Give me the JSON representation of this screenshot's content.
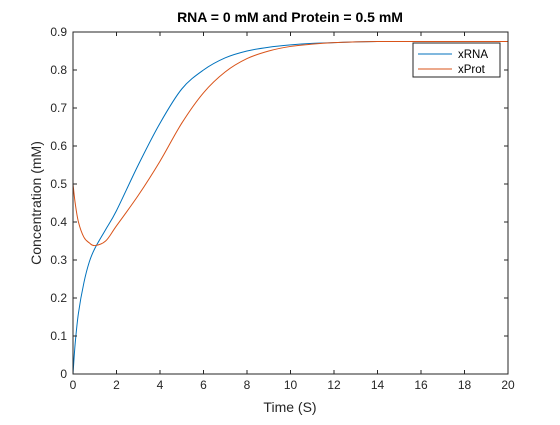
{
  "chart_data": {
    "type": "line",
    "title": "RNA = 0 mM and Protein = 0.5 mM",
    "xlabel": "Time (S)",
    "ylabel": "Concentration (mM)",
    "xlim": [
      0,
      20
    ],
    "ylim": [
      0,
      0.9
    ],
    "xticks": [
      0,
      2,
      4,
      6,
      8,
      10,
      12,
      14,
      16,
      18,
      20
    ],
    "yticks": [
      0,
      0.1,
      0.2,
      0.3,
      0.4,
      0.5,
      0.6,
      0.7,
      0.8,
      0.9
    ],
    "grid": false,
    "legend_position": "top-right",
    "x": [
      0,
      0.1,
      0.25,
      0.5,
      0.75,
      1,
      1.5,
      2,
      3,
      4,
      5,
      6,
      7,
      8,
      9,
      10,
      11,
      12,
      13,
      14,
      15,
      16,
      17,
      18,
      19,
      20
    ],
    "series": [
      {
        "name": "xRNA",
        "color": "#0072BD",
        "values": [
          0,
          0.08,
          0.16,
          0.24,
          0.295,
          0.33,
          0.38,
          0.43,
          0.55,
          0.66,
          0.75,
          0.8,
          0.832,
          0.85,
          0.86,
          0.866,
          0.87,
          0.872,
          0.874,
          0.875,
          0.875,
          0.875,
          0.875,
          0.875,
          0.875,
          0.875
        ]
      },
      {
        "name": "xProt",
        "color": "#D95319",
        "values": [
          0.5,
          0.45,
          0.4,
          0.36,
          0.345,
          0.338,
          0.35,
          0.39,
          0.47,
          0.56,
          0.66,
          0.74,
          0.795,
          0.83,
          0.85,
          0.862,
          0.868,
          0.872,
          0.874,
          0.875,
          0.875,
          0.875,
          0.875,
          0.875,
          0.875,
          0.875
        ]
      }
    ]
  }
}
